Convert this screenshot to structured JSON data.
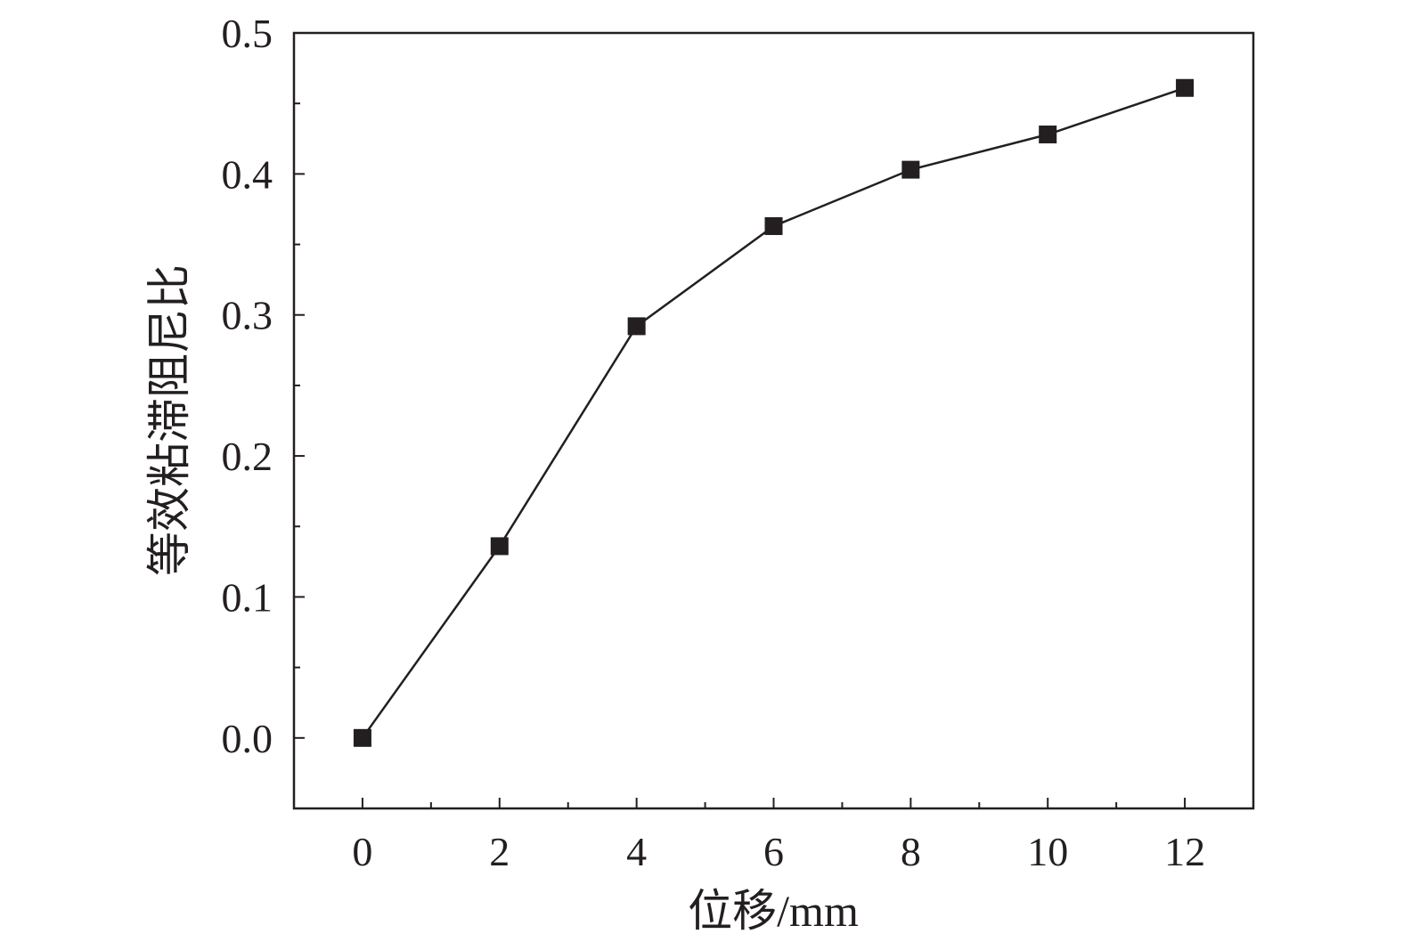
{
  "chart_data": {
    "type": "line",
    "xlabel": "位移/mm",
    "ylabel": "等效粘滞阻尼比",
    "xlim": [
      -1,
      13
    ],
    "ylim": [
      -0.05,
      0.5
    ],
    "x_ticks": [
      "0",
      "2",
      "4",
      "6",
      "8",
      "10",
      "12"
    ],
    "y_ticks": [
      "0.0",
      "0.1",
      "0.2",
      "0.3",
      "0.4",
      "0.5"
    ],
    "x_tick_values": [
      0,
      2,
      4,
      6,
      8,
      10,
      12
    ],
    "y_tick_values": [
      0.0,
      0.1,
      0.2,
      0.3,
      0.4,
      0.5
    ],
    "grid": false,
    "marker": "square",
    "colors": {
      "line": "#231f20",
      "marker": "#231f20",
      "axes": "#231f20"
    },
    "series": [
      {
        "x": [
          0,
          2,
          4,
          6,
          8,
          10,
          12
        ],
        "y": [
          0.0,
          0.136,
          0.292,
          0.363,
          0.403,
          0.428,
          0.461
        ]
      }
    ]
  }
}
